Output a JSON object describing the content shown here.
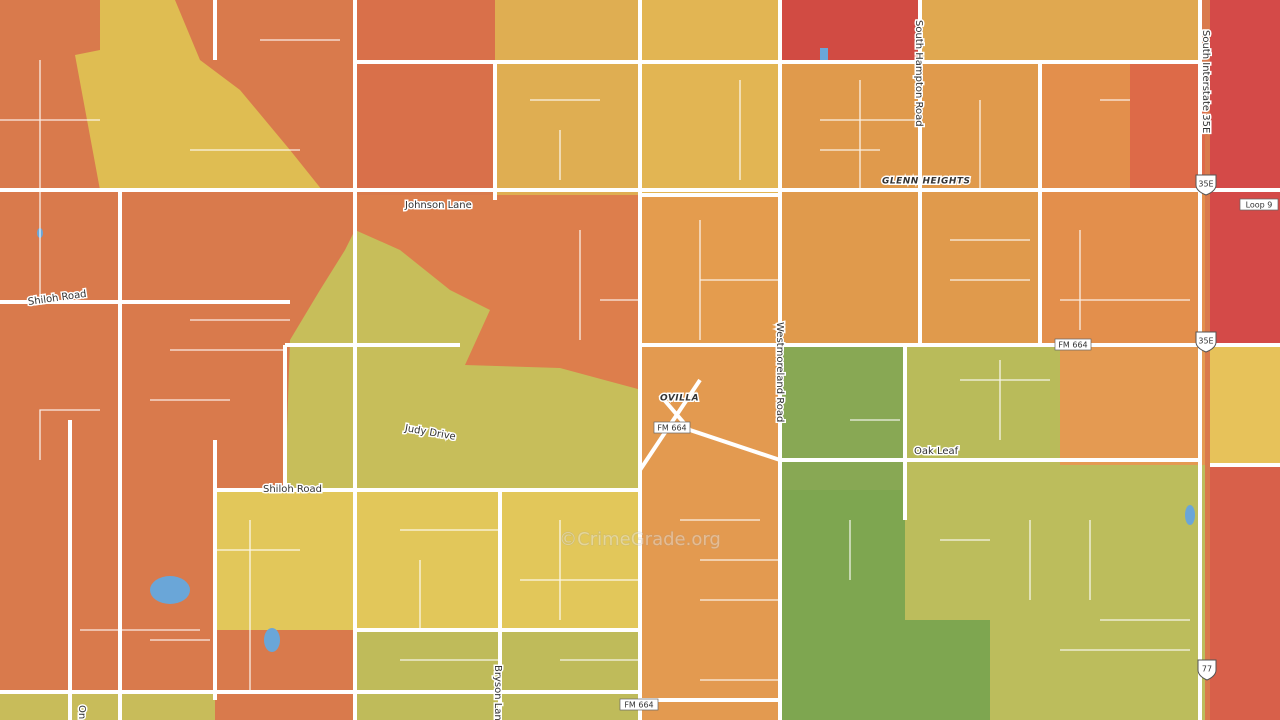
{
  "map": {
    "roads": [
      "Johnson Lane",
      "Shiloh Road",
      "Judy Drive",
      "Shiloh Road",
      "Oak Leaf",
      "Westmoreland Road",
      "South Hampton Road",
      "South Interstate 35E",
      "Bryson Lane",
      "On"
    ],
    "places": [
      "GLENN HEIGHTS",
      "OVILLA"
    ],
    "shields": [
      "FM 664",
      "FM 664",
      "FM 664",
      "Loop 9",
      "35E",
      "35E",
      "77"
    ],
    "watermark": "©CrimeGrade.org"
  }
}
